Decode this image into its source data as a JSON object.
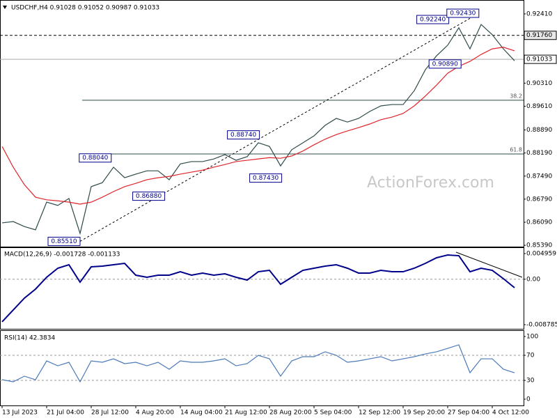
{
  "chart_data": [
    {
      "type": "line",
      "title": "USDCHF,H4 0.91028 0.91052 0.90987 0.91033",
      "watermark": "ActionForex.com",
      "ylim": [
        0.8535,
        0.9279
      ],
      "yticks": [
        {
          "value": 0.9241,
          "label": "0.92410"
        },
        {
          "value": 0.9031,
          "label": "0.90310"
        },
        {
          "value": 0.8961,
          "label": "0.89610"
        },
        {
          "value": 0.8889,
          "label": "0.88890"
        },
        {
          "value": 0.8819,
          "label": "0.88190"
        },
        {
          "value": 0.8749,
          "label": "0.87490"
        },
        {
          "value": 0.8679,
          "label": "0.86790"
        },
        {
          "value": 0.8609,
          "label": "0.86090"
        },
        {
          "value": 0.8539,
          "label": "0.85390"
        }
      ],
      "series": [
        {
          "color": "#2e4a4a",
          "values": [
            0.8607,
            0.8611,
            0.8596,
            0.8586,
            0.867,
            0.866,
            0.8681,
            0.8575,
            0.8717,
            0.8729,
            0.8776,
            0.8744,
            0.8755,
            0.8765,
            0.8765,
            0.8738,
            0.8786,
            0.8793,
            0.8793,
            0.8801,
            0.8814,
            0.8797,
            0.8808,
            0.885,
            0.8839,
            0.878,
            0.8829,
            0.885,
            0.8871,
            0.8903,
            0.8924,
            0.8913,
            0.8924,
            0.8945,
            0.8962,
            0.8966,
            0.8966,
            0.9008,
            0.9072,
            0.9114,
            0.9146,
            0.9199,
            0.9135,
            0.9209,
            0.9178,
            0.9135,
            0.9099
          ]
        },
        {
          "color": "#e0242a",
          "values": [
            0.8839,
            0.8776,
            0.8723,
            0.8685,
            0.8677,
            0.8674,
            0.867,
            0.8664,
            0.867,
            0.8685,
            0.8702,
            0.8717,
            0.8727,
            0.8738,
            0.8744,
            0.8748,
            0.8755,
            0.8761,
            0.8767,
            0.8776,
            0.8784,
            0.8793,
            0.8797,
            0.8801,
            0.8805,
            0.8803,
            0.881,
            0.8825,
            0.8844,
            0.8861,
            0.8875,
            0.8886,
            0.8896,
            0.8907,
            0.892,
            0.8928,
            0.8939,
            0.8962,
            0.8992,
            0.9025,
            0.9061,
            0.9082,
            0.9097,
            0.9118,
            0.9135,
            0.914,
            0.9129
          ]
        }
      ],
      "levels": [
        {
          "value": 0.9176,
          "label": "0.91760",
          "style": "dashed"
        },
        {
          "value": 0.91033,
          "label": "0.91033",
          "style": "solid"
        }
      ],
      "fib_levels": [
        {
          "value": 0.8979,
          "label": "38.2"
        },
        {
          "value": 0.8816,
          "label": "61.8"
        }
      ],
      "annotations": [
        {
          "x": 7,
          "value": 0.8551,
          "label": "0.85510"
        },
        {
          "x": 9.8,
          "value": 0.8804,
          "label": "0.88040"
        },
        {
          "x": 14.6,
          "value": 0.8688,
          "label": "0.86880"
        },
        {
          "x": 23.1,
          "value": 0.8874,
          "label": "0.88740"
        },
        {
          "x": 25.1,
          "value": 0.8743,
          "label": "0.87430"
        },
        {
          "x": 41.2,
          "value": 0.9089,
          "label": "0.90890"
        },
        {
          "x": 40.1,
          "value": 0.9224,
          "label": "0.92240"
        },
        {
          "x": 42.8,
          "value": 0.9243,
          "label": "0.92430"
        }
      ]
    },
    {
      "type": "line",
      "title": "MACD(12,26,9) -0.001728 -0.001133",
      "ylim": [
        -0.009593,
        0.006037
      ],
      "yticks": [
        0.004959,
        {
          "value": 0,
          "label": "0.00"
        },
        -0.008785
      ],
      "series": [
        {
          "color": "#00008b",
          "values": [
            -0.00824,
            -0.00595,
            -0.00366,
            -0.00191,
            0.00038,
            0.00213,
            0.0028,
            -0.00057,
            0.0024,
            0.00253,
            0.0028,
            0.00307,
            0.00078,
            0.00038,
            0.00078,
            0.00078,
            0.00145,
            0.00078,
            0.00119,
            0.00078,
            0.00105,
            0.00038,
            -0.00016,
            0.00145,
            0.00172,
            -0.00097,
            0.00038,
            0.00172,
            0.00213,
            0.00253,
            0.0028,
            0.00213,
            0.00119,
            0.00119,
            0.00172,
            0.00145,
            0.00145,
            0.00213,
            0.00307,
            0.00415,
            0.00469,
            0.00455,
            0.00145,
            0.00213,
            0.00172,
            0.00011,
            -0.00164
          ]
        }
      ]
    },
    {
      "type": "line",
      "title": "RSI(14) 42.3834",
      "ylim": [
        -10,
        107.8
      ],
      "yticks": [
        100,
        70,
        30,
        0
      ],
      "dashed_levels": [
        70,
        30
      ],
      "categories": [
        "13 Jul 2023",
        null,
        null,
        null,
        "21 Jul 04:00",
        null,
        null,
        null,
        "28 Jul 12:00",
        null,
        null,
        null,
        "4 Aug 20:00",
        null,
        null,
        null,
        "14 Aug 04:00",
        null,
        null,
        null,
        "21 Aug 12:00",
        null,
        null,
        null,
        "28 Aug 20:00",
        null,
        null,
        null,
        "5 Sep 04:00",
        null,
        null,
        null,
        "12 Sep 12:00",
        null,
        null,
        null,
        "19 Sep 20:00",
        null,
        null,
        null,
        "27 Sep 04:00",
        null,
        null,
        null,
        "4 Oct 12:00",
        null,
        null
      ],
      "series": [
        {
          "color": "#4a7ab8",
          "values": [
            31.1,
            27.8,
            36.7,
            31.1,
            61.1,
            53.3,
            58.9,
            27.8,
            61.1,
            58.9,
            64.4,
            56.7,
            58.9,
            53.3,
            58.9,
            47.8,
            61.1,
            58.9,
            58.9,
            61.1,
            64.4,
            53.3,
            56.7,
            70,
            64.4,
            36.7,
            61.1,
            67.8,
            67.8,
            75.6,
            70,
            58.9,
            61.1,
            64.4,
            67.8,
            61.1,
            64.4,
            67.8,
            72.2,
            75.6,
            81.1,
            86.7,
            42.2,
            64.4,
            64.4,
            47.8,
            42.2
          ]
        }
      ]
    }
  ]
}
